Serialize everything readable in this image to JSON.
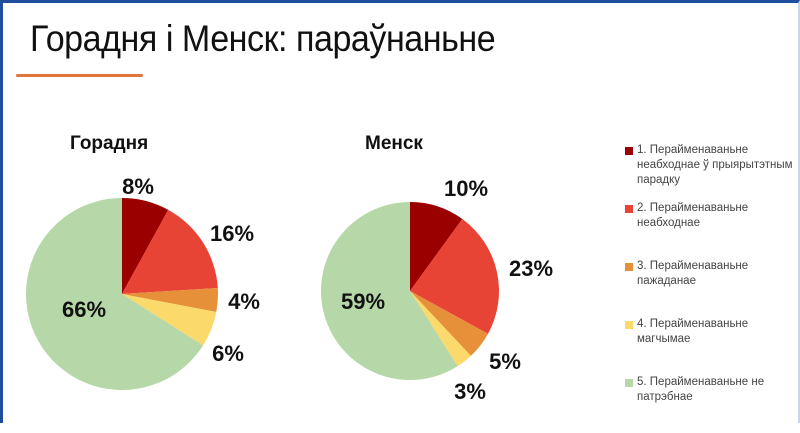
{
  "slide": {
    "title": "Горадня і Менск: параўнаньне",
    "accent_color": "#e0763a",
    "border_color": "#1f4e9c"
  },
  "chart_data": [
    {
      "type": "pie",
      "title": "Горадня",
      "categories": [
        "1. Перайменаваньне неабходнае ў прыярытэтным парадку",
        "2. Перайменаваньне неабходнае",
        "3. Перайменаваньне пажаданае",
        "4. Перайменаваньне магчымае",
        "5. Перайменаваньне не патрэбнае"
      ],
      "values": [
        8,
        16,
        4,
        6,
        66
      ],
      "labels": [
        "8%",
        "16%",
        "4%",
        "6%",
        "66%"
      ]
    },
    {
      "type": "pie",
      "title": "Менск",
      "categories": [
        "1. Перайменаваньне неабходнае ў прыярытэтным парадку",
        "2. Перайменаваньне неабходнае",
        "3. Перайменаваньне пажаданае",
        "4. Перайменаваньне магчымае",
        "5. Перайменаваньне не патрэбнае"
      ],
      "values": [
        10,
        23,
        5,
        3,
        59
      ],
      "labels": [
        "10%",
        "23%",
        "5%",
        "3%",
        "59%"
      ]
    }
  ],
  "legend": {
    "placement": "right",
    "items": [
      {
        "label": "1. Перайменаваньне неабходнае ў прыярытэтным парадку",
        "color": "#9b0000"
      },
      {
        "label": "2. Перайменаваньне неабходнае",
        "color": "#e84436"
      },
      {
        "label": "3. Перайменаваньне пажаданае",
        "color": "#e6913a"
      },
      {
        "label": "4. Перайменаваньне магчымае",
        "color": "#fbd96a"
      },
      {
        "label": "5. Перайменаваньне не патрэбнае",
        "color": "#b6d7a8"
      }
    ]
  }
}
